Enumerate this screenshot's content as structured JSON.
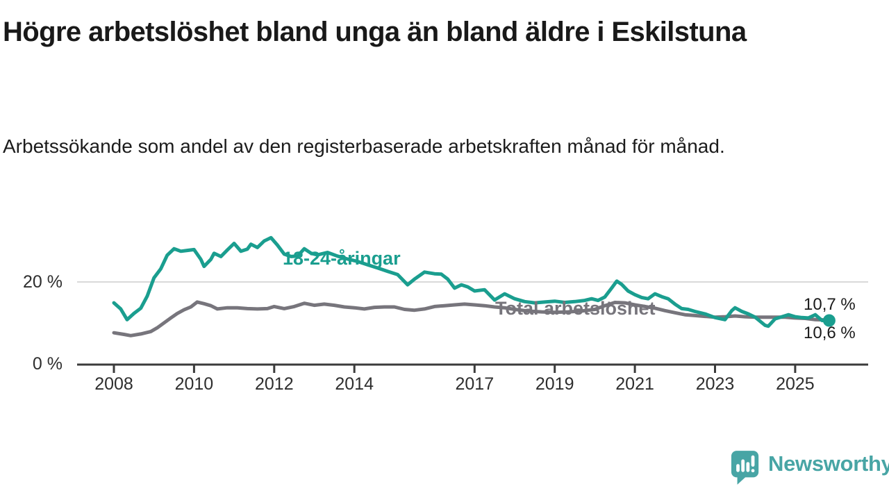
{
  "header": {
    "title": "Högre arbetslöshet bland unga än bland äldre i Eskilstuna",
    "subtitle": "Arbetssökande som andel av den registerbaserade arbetskraften månad för månad."
  },
  "chart_data": {
    "type": "line",
    "unit": "%",
    "grid": "horizontal-20-only",
    "x_axis": {
      "ticks": [
        {
          "label": "2008",
          "year": 2008
        },
        {
          "label": "2010",
          "year": 2010
        },
        {
          "label": "2012",
          "year": 2012
        },
        {
          "label": "2014",
          "year": 2014
        },
        {
          "label": "2017",
          "year": 2017
        },
        {
          "label": "2019",
          "year": 2019
        },
        {
          "label": "2021",
          "year": 2021
        },
        {
          "label": "2023",
          "year": 2023
        },
        {
          "label": "2025",
          "year": 2025
        }
      ],
      "range": [
        2007.1,
        2026.8
      ]
    },
    "y_axis": {
      "ticks": [
        {
          "label": "20 %",
          "value": 20
        },
        {
          "label": "0 %",
          "value": 0
        }
      ],
      "range": [
        0,
        31.5
      ]
    },
    "series": [
      {
        "name": "18-24-åringar",
        "color": "#1a9e8f",
        "end_label": "10,6 %",
        "end_value": 10.6,
        "end_dot": true,
        "points": [
          [
            2008.0,
            14.9
          ],
          [
            2008.17,
            13.4
          ],
          [
            2008.33,
            10.8
          ],
          [
            2008.5,
            12.3
          ],
          [
            2008.67,
            13.6
          ],
          [
            2008.83,
            16.5
          ],
          [
            2009.0,
            21.0
          ],
          [
            2009.17,
            23.2
          ],
          [
            2009.33,
            26.5
          ],
          [
            2009.5,
            28.1
          ],
          [
            2009.67,
            27.5
          ],
          [
            2009.83,
            27.7
          ],
          [
            2010.0,
            27.9
          ],
          [
            2010.17,
            25.5
          ],
          [
            2010.25,
            23.8
          ],
          [
            2010.42,
            25.5
          ],
          [
            2010.5,
            27.0
          ],
          [
            2010.67,
            26.2
          ],
          [
            2010.83,
            27.8
          ],
          [
            2011.0,
            29.4
          ],
          [
            2011.17,
            27.5
          ],
          [
            2011.33,
            28.0
          ],
          [
            2011.42,
            29.2
          ],
          [
            2011.58,
            28.4
          ],
          [
            2011.75,
            30.0
          ],
          [
            2011.92,
            30.8
          ],
          [
            2012.08,
            29.0
          ],
          [
            2012.25,
            26.8
          ],
          [
            2012.42,
            26.2
          ],
          [
            2012.58,
            26.3
          ],
          [
            2012.75,
            28.1
          ],
          [
            2012.92,
            27.0
          ],
          [
            2013.08,
            26.6
          ],
          [
            2013.33,
            27.2
          ],
          [
            2013.58,
            26.3
          ],
          [
            2013.83,
            25.6
          ],
          [
            2014.08,
            25.0
          ],
          [
            2014.33,
            24.2
          ],
          [
            2014.58,
            23.4
          ],
          [
            2014.83,
            22.6
          ],
          [
            2015.08,
            21.8
          ],
          [
            2015.33,
            19.3
          ],
          [
            2015.5,
            20.7
          ],
          [
            2015.75,
            22.4
          ],
          [
            2016.0,
            22.0
          ],
          [
            2016.17,
            21.9
          ],
          [
            2016.33,
            20.7
          ],
          [
            2016.5,
            18.5
          ],
          [
            2016.67,
            19.3
          ],
          [
            2016.83,
            18.8
          ],
          [
            2017.0,
            17.8
          ],
          [
            2017.25,
            18.1
          ],
          [
            2017.5,
            15.6
          ],
          [
            2017.75,
            17.1
          ],
          [
            2018.0,
            15.9
          ],
          [
            2018.25,
            15.2
          ],
          [
            2018.5,
            14.9
          ],
          [
            2018.75,
            15.1
          ],
          [
            2019.0,
            15.3
          ],
          [
            2019.25,
            15.0
          ],
          [
            2019.5,
            15.2
          ],
          [
            2019.75,
            15.5
          ],
          [
            2019.92,
            15.9
          ],
          [
            2020.08,
            15.5
          ],
          [
            2020.25,
            16.3
          ],
          [
            2020.42,
            18.5
          ],
          [
            2020.55,
            20.2
          ],
          [
            2020.67,
            19.4
          ],
          [
            2020.83,
            17.8
          ],
          [
            2021.0,
            16.9
          ],
          [
            2021.17,
            16.2
          ],
          [
            2021.33,
            15.9
          ],
          [
            2021.5,
            17.1
          ],
          [
            2021.67,
            16.4
          ],
          [
            2021.83,
            15.9
          ],
          [
            2022.0,
            14.6
          ],
          [
            2022.17,
            13.5
          ],
          [
            2022.33,
            13.3
          ],
          [
            2022.5,
            12.8
          ],
          [
            2022.75,
            12.2
          ],
          [
            2023.0,
            11.3
          ],
          [
            2023.25,
            10.8
          ],
          [
            2023.42,
            13.0
          ],
          [
            2023.5,
            13.7
          ],
          [
            2023.67,
            12.8
          ],
          [
            2023.83,
            12.2
          ],
          [
            2024.0,
            11.4
          ],
          [
            2024.25,
            9.4
          ],
          [
            2024.33,
            9.2
          ],
          [
            2024.5,
            11.0
          ],
          [
            2024.67,
            11.5
          ],
          [
            2024.83,
            12.0
          ],
          [
            2025.0,
            11.5
          ],
          [
            2025.17,
            11.3
          ],
          [
            2025.33,
            11.2
          ],
          [
            2025.5,
            12.0
          ],
          [
            2025.67,
            10.6
          ],
          [
            2025.85,
            10.6
          ]
        ]
      },
      {
        "name": "Total arbetslöshet",
        "color": "#77757c",
        "end_label": "10,7 %",
        "end_value": 10.7,
        "end_dot": false,
        "points": [
          [
            2008.0,
            7.6
          ],
          [
            2008.25,
            7.2
          ],
          [
            2008.42,
            6.9
          ],
          [
            2008.67,
            7.3
          ],
          [
            2008.92,
            7.9
          ],
          [
            2009.08,
            8.8
          ],
          [
            2009.25,
            10.0
          ],
          [
            2009.42,
            11.2
          ],
          [
            2009.58,
            12.3
          ],
          [
            2009.75,
            13.2
          ],
          [
            2009.92,
            13.9
          ],
          [
            2010.08,
            15.1
          ],
          [
            2010.25,
            14.7
          ],
          [
            2010.42,
            14.2
          ],
          [
            2010.58,
            13.4
          ],
          [
            2010.83,
            13.7
          ],
          [
            2011.08,
            13.7
          ],
          [
            2011.33,
            13.5
          ],
          [
            2011.58,
            13.4
          ],
          [
            2011.83,
            13.5
          ],
          [
            2012.0,
            14.0
          ],
          [
            2012.25,
            13.5
          ],
          [
            2012.5,
            14.0
          ],
          [
            2012.75,
            14.8
          ],
          [
            2013.0,
            14.3
          ],
          [
            2013.25,
            14.6
          ],
          [
            2013.5,
            14.3
          ],
          [
            2013.75,
            13.9
          ],
          [
            2014.0,
            13.7
          ],
          [
            2014.25,
            13.4
          ],
          [
            2014.5,
            13.8
          ],
          [
            2014.75,
            13.9
          ],
          [
            2015.0,
            13.9
          ],
          [
            2015.25,
            13.3
          ],
          [
            2015.5,
            13.1
          ],
          [
            2015.75,
            13.4
          ],
          [
            2016.0,
            14.0
          ],
          [
            2016.25,
            14.2
          ],
          [
            2016.5,
            14.4
          ],
          [
            2016.75,
            14.6
          ],
          [
            2017.0,
            14.4
          ],
          [
            2017.25,
            14.2
          ],
          [
            2017.5,
            13.9
          ],
          [
            2017.75,
            13.7
          ],
          [
            2018.0,
            13.3
          ],
          [
            2018.33,
            12.9
          ],
          [
            2018.67,
            12.7
          ],
          [
            2019.0,
            12.6
          ],
          [
            2019.33,
            12.7
          ],
          [
            2019.67,
            12.9
          ],
          [
            2020.0,
            13.3
          ],
          [
            2020.25,
            14.2
          ],
          [
            2020.5,
            15.0
          ],
          [
            2020.75,
            14.9
          ],
          [
            2021.0,
            14.4
          ],
          [
            2021.25,
            14.0
          ],
          [
            2021.5,
            13.6
          ],
          [
            2021.75,
            13.0
          ],
          [
            2022.0,
            12.5
          ],
          [
            2022.25,
            12.0
          ],
          [
            2022.5,
            11.8
          ],
          [
            2022.75,
            11.6
          ],
          [
            2023.0,
            11.4
          ],
          [
            2023.25,
            11.5
          ],
          [
            2023.5,
            11.7
          ],
          [
            2023.75,
            11.5
          ],
          [
            2024.0,
            11.4
          ],
          [
            2024.25,
            11.4
          ],
          [
            2024.5,
            11.4
          ],
          [
            2024.75,
            11.4
          ],
          [
            2025.0,
            11.2
          ],
          [
            2025.25,
            11.1
          ],
          [
            2025.5,
            10.8
          ],
          [
            2025.85,
            10.7
          ]
        ]
      }
    ]
  },
  "branding": {
    "name": "Newsworthy",
    "color": "#48a5a5"
  }
}
